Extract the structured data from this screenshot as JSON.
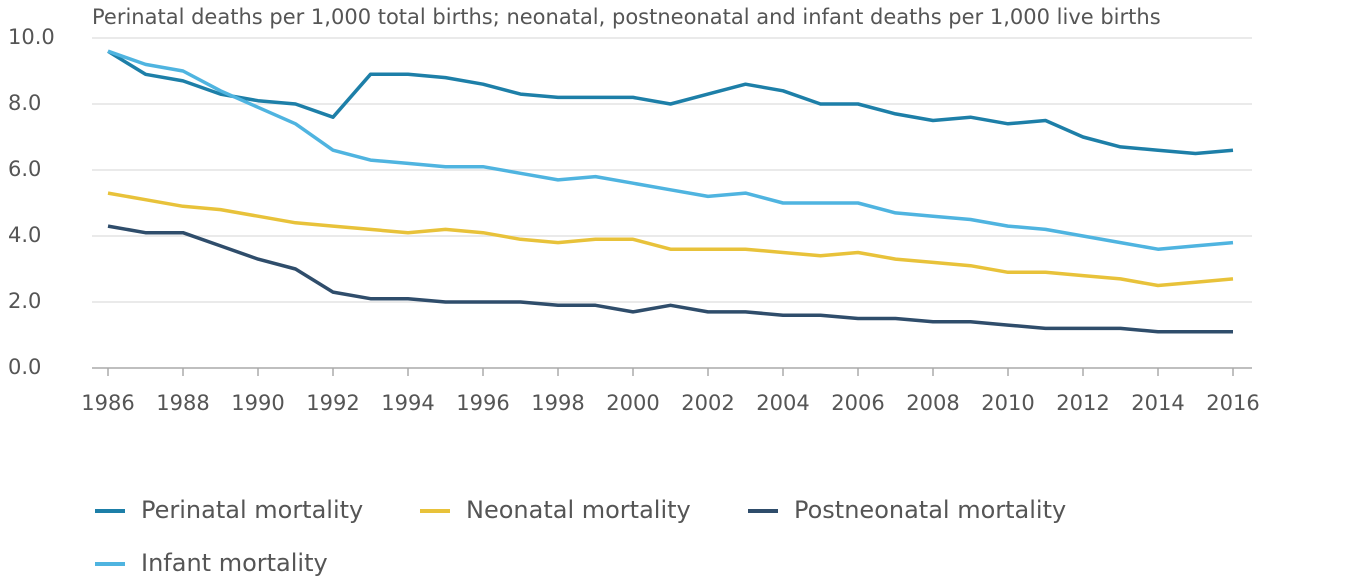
{
  "chart_data": {
    "type": "line",
    "title": "Perinatal deaths per 1,000 total births; neonatal, postneonatal and infant deaths per 1,000 live births",
    "x": [
      1986,
      1987,
      1988,
      1989,
      1990,
      1991,
      1992,
      1993,
      1994,
      1995,
      1996,
      1997,
      1998,
      1999,
      2000,
      2001,
      2002,
      2003,
      2004,
      2005,
      2006,
      2007,
      2008,
      2009,
      2010,
      2011,
      2012,
      2013,
      2014,
      2015,
      2016
    ],
    "xlim": [
      1986,
      2016
    ],
    "xticks": [
      1986,
      1988,
      1990,
      1992,
      1994,
      1996,
      1998,
      2000,
      2002,
      2004,
      2006,
      2008,
      2010,
      2012,
      2014,
      2016
    ],
    "ylim": [
      0,
      10
    ],
    "yticks": [
      {
        "value": 0,
        "label": "0.0"
      },
      {
        "value": 2,
        "label": "2.0"
      },
      {
        "value": 4,
        "label": "4.0"
      },
      {
        "value": 6,
        "label": "6.0"
      },
      {
        "value": 8,
        "label": "8.0"
      },
      {
        "value": 10,
        "label": "10.0"
      }
    ],
    "grid": true,
    "series": [
      {
        "name": "Perinatal mortality",
        "color": "#1d7fa8",
        "values": [
          9.6,
          8.9,
          8.7,
          8.3,
          8.1,
          8.0,
          7.6,
          8.9,
          8.9,
          8.8,
          8.6,
          8.3,
          8.2,
          8.2,
          8.2,
          8.0,
          8.3,
          8.6,
          8.4,
          8.0,
          8.0,
          7.7,
          7.5,
          7.6,
          7.4,
          7.5,
          7.0,
          6.7,
          6.6,
          6.5,
          6.6
        ]
      },
      {
        "name": "Neonatal mortality",
        "color": "#e8c23a",
        "values": [
          5.3,
          5.1,
          4.9,
          4.8,
          4.6,
          4.4,
          4.3,
          4.2,
          4.1,
          4.2,
          4.1,
          3.9,
          3.8,
          3.9,
          3.9,
          3.6,
          3.6,
          3.6,
          3.5,
          3.4,
          3.5,
          3.3,
          3.2,
          3.1,
          2.9,
          2.9,
          2.8,
          2.7,
          2.5,
          2.6,
          2.7
        ]
      },
      {
        "name": "Postneonatal mortality",
        "color": "#2f4d6b",
        "values": [
          4.3,
          4.1,
          4.1,
          3.7,
          3.3,
          3.0,
          2.3,
          2.1,
          2.1,
          2.0,
          2.0,
          2.0,
          1.9,
          1.9,
          1.7,
          1.9,
          1.7,
          1.7,
          1.6,
          1.6,
          1.5,
          1.5,
          1.4,
          1.4,
          1.3,
          1.2,
          1.2,
          1.2,
          1.1,
          1.1,
          1.1
        ]
      },
      {
        "name": "Infant mortality",
        "color": "#4fb4e0",
        "values": [
          9.6,
          9.2,
          9.0,
          8.4,
          7.9,
          7.4,
          6.6,
          6.3,
          6.2,
          6.1,
          6.1,
          5.9,
          5.7,
          5.8,
          5.6,
          5.4,
          5.2,
          5.3,
          5.0,
          5.0,
          5.0,
          4.7,
          4.6,
          4.5,
          4.3,
          4.2,
          4.0,
          3.8,
          3.6,
          3.7,
          3.8
        ]
      }
    ]
  }
}
